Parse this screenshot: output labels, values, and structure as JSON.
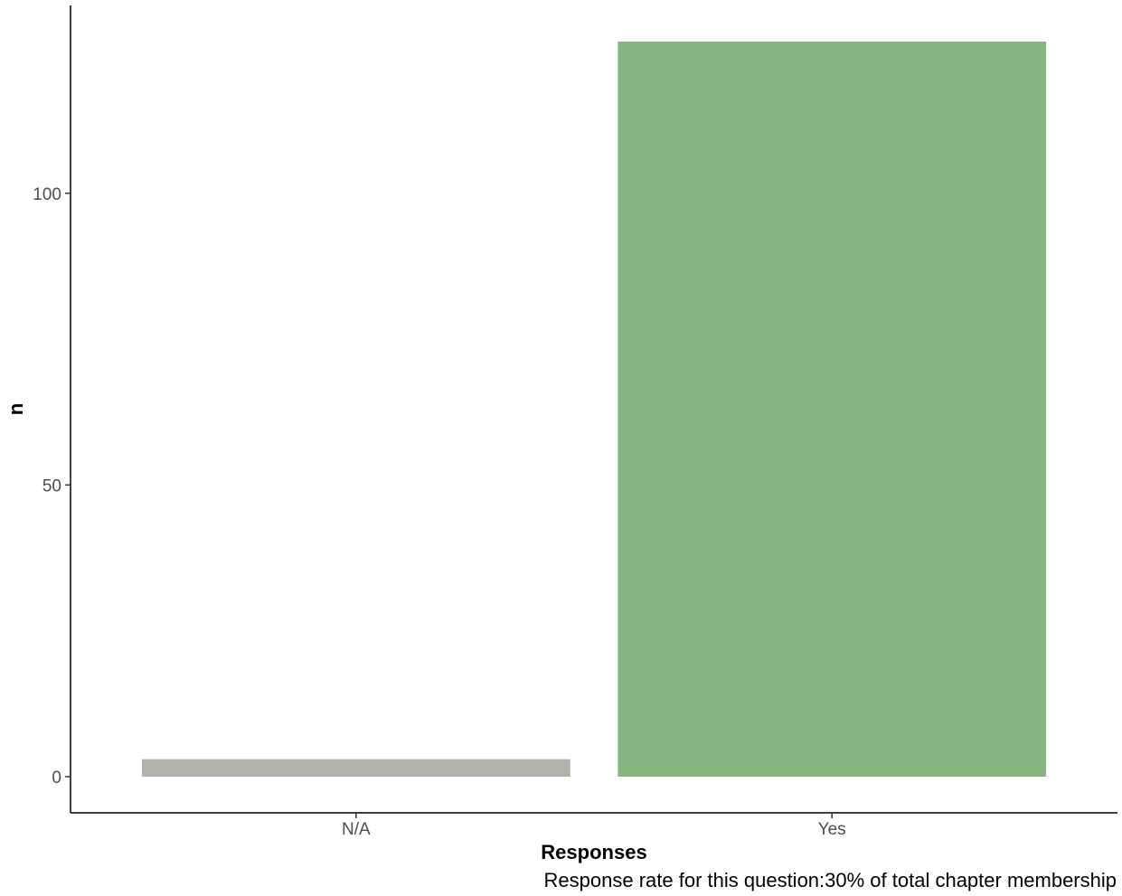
{
  "chart_data": {
    "type": "bar",
    "categories": [
      "N/A",
      "Yes"
    ],
    "values": [
      3,
      126
    ],
    "colors": [
      "#b3b3ab",
      "#86b783"
    ],
    "xlabel": "Responses",
    "ylabel": "n",
    "caption": "Response rate for this question:30% of total chapter membership",
    "yticks": [
      0,
      50,
      100
    ],
    "ylim": [
      -6.2,
      132.2
    ],
    "grid": false,
    "legend": "none"
  }
}
